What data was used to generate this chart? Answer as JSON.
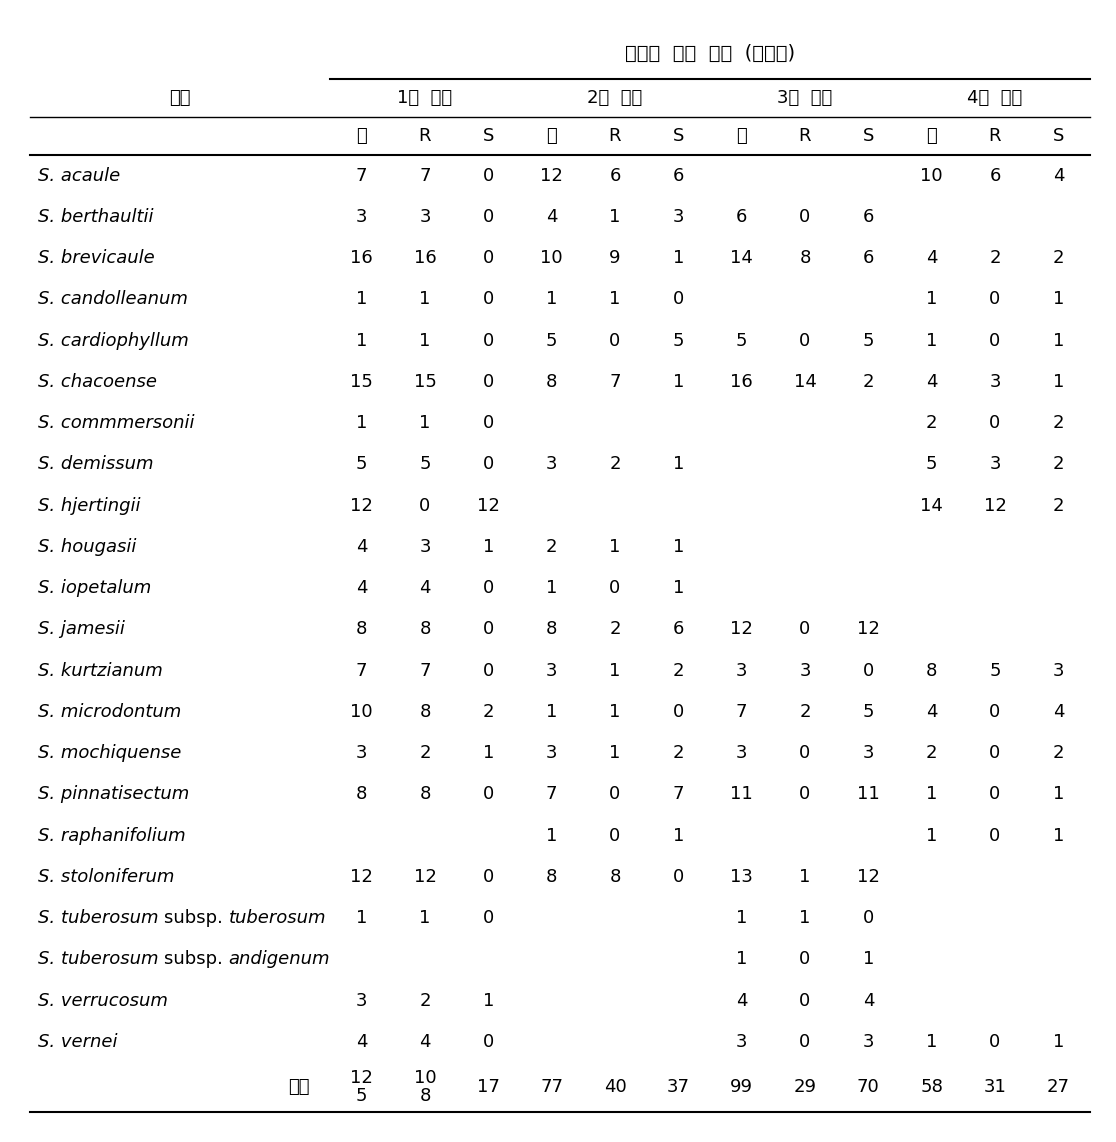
{
  "title": "내서성  검정  결과  (계통수)",
  "col_group_header": [
    "1차  검정",
    "2차  검정",
    "3차  검정",
    "4차  검정"
  ],
  "col_sub_header": [
    "총",
    "R",
    "S",
    "총",
    "R",
    "S",
    "총",
    "R",
    "S",
    "총",
    "R",
    "S"
  ],
  "row_label_header": "종명",
  "species": [
    "S. acaule",
    "S. berthaultii",
    "S. brevicaule",
    "S. candolleanum",
    "S. cardiophyllum",
    "S. chacoense",
    "S. commmersonii",
    "S. demissum",
    "S. hjertingii",
    "S. hougasii",
    "S. iopetalum",
    "S. jamesii",
    "S. kurtzianum",
    "S. microdontum",
    "S. mochiquense",
    "S. pinnatisectum",
    "S. raphanifolium",
    "S. stoloniferum",
    "S. tuberosum subsp. tuberosum",
    "S. tuberosum subsp. andigenum",
    "S. verrucosum",
    "S. vernei"
  ],
  "data": [
    [
      "7",
      "7",
      "0",
      "12",
      "6",
      "6",
      "",
      "",
      "",
      "10",
      "6",
      "4"
    ],
    [
      "3",
      "3",
      "0",
      "4",
      "1",
      "3",
      "6",
      "0",
      "6",
      "",
      "",
      ""
    ],
    [
      "16",
      "16",
      "0",
      "10",
      "9",
      "1",
      "14",
      "8",
      "6",
      "4",
      "2",
      "2"
    ],
    [
      "1",
      "1",
      "0",
      "1",
      "1",
      "0",
      "",
      "",
      "",
      "1",
      "0",
      "1"
    ],
    [
      "1",
      "1",
      "0",
      "5",
      "0",
      "5",
      "5",
      "0",
      "5",
      "1",
      "0",
      "1"
    ],
    [
      "15",
      "15",
      "0",
      "8",
      "7",
      "1",
      "16",
      "14",
      "2",
      "4",
      "3",
      "1"
    ],
    [
      "1",
      "1",
      "0",
      "",
      "",
      "",
      "",
      "",
      "",
      "2",
      "0",
      "2"
    ],
    [
      "5",
      "5",
      "0",
      "3",
      "2",
      "1",
      "",
      "",
      "",
      "5",
      "3",
      "2"
    ],
    [
      "12",
      "0",
      "12",
      "",
      "",
      "",
      "",
      "",
      "",
      "14",
      "12",
      "2"
    ],
    [
      "4",
      "3",
      "1",
      "2",
      "1",
      "1",
      "",
      "",
      "",
      "",
      "",
      ""
    ],
    [
      "4",
      "4",
      "0",
      "1",
      "0",
      "1",
      "",
      "",
      "",
      "",
      "",
      ""
    ],
    [
      "8",
      "8",
      "0",
      "8",
      "2",
      "6",
      "12",
      "0",
      "12",
      "",
      "",
      ""
    ],
    [
      "7",
      "7",
      "0",
      "3",
      "1",
      "2",
      "3",
      "3",
      "0",
      "8",
      "5",
      "3"
    ],
    [
      "10",
      "8",
      "2",
      "1",
      "1",
      "0",
      "7",
      "2",
      "5",
      "4",
      "0",
      "4"
    ],
    [
      "3",
      "2",
      "1",
      "3",
      "1",
      "2",
      "3",
      "0",
      "3",
      "2",
      "0",
      "2"
    ],
    [
      "8",
      "8",
      "0",
      "7",
      "0",
      "7",
      "11",
      "0",
      "11",
      "1",
      "0",
      "1"
    ],
    [
      "",
      "",
      "",
      "1",
      "0",
      "1",
      "",
      "",
      "",
      "1",
      "0",
      "1"
    ],
    [
      "12",
      "12",
      "0",
      "8",
      "8",
      "0",
      "13",
      "1",
      "12",
      "",
      "",
      ""
    ],
    [
      "1",
      "1",
      "0",
      "",
      "",
      "",
      "1",
      "1",
      "0",
      "",
      "",
      ""
    ],
    [
      "",
      "",
      "",
      "",
      "",
      "",
      "1",
      "0",
      "1",
      "",
      "",
      ""
    ],
    [
      "3",
      "2",
      "1",
      "",
      "",
      "",
      "4",
      "0",
      "4",
      "",
      "",
      ""
    ],
    [
      "4",
      "4",
      "0",
      "",
      "",
      "",
      "3",
      "0",
      "3",
      "1",
      "0",
      "1"
    ]
  ],
  "totals_label": "총계",
  "totals_col0": "125",
  "totals_col0_line1": "12",
  "totals_col0_line2": "5",
  "totals_col1": "108",
  "totals_col1_line1": "10",
  "totals_col1_line2": "8",
  "totals_rest": [
    "17",
    "77",
    "40",
    "37",
    "99",
    "29",
    "70",
    "58",
    "31",
    "27"
  ],
  "background_color": "#ffffff",
  "text_color": "#000000",
  "font_size": 13,
  "title_font_size": 14
}
